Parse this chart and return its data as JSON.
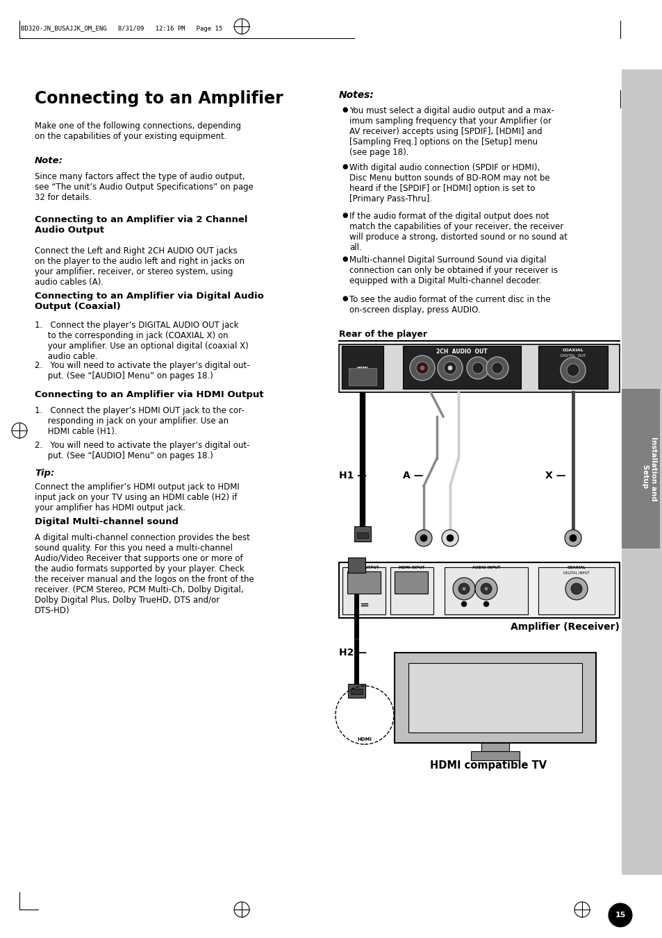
{
  "page_header": "BD320-JN_BUSAJJK_OM_ENG   8/31/09   12:16 PM   Page 15",
  "title": "Connecting to an Amplifier",
  "background_color": "#ffffff",
  "page_number": "15"
}
